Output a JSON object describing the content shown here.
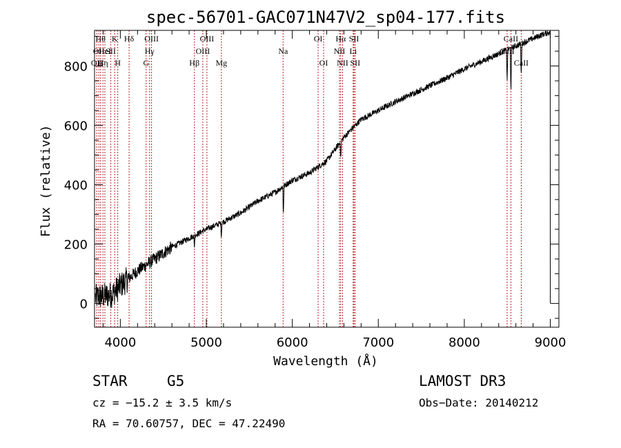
{
  "chart_data": {
    "type": "line",
    "title": "spec-56701-GAC071N47V2_sp04-177.fits",
    "xlabel": "Wavelength (Å)",
    "ylabel": "Flux (relative)",
    "xlim": [
      3700,
      9100
    ],
    "ylim": [
      -80,
      920
    ],
    "x_ticks": [
      4000,
      5000,
      6000,
      7000,
      8000,
      9000
    ],
    "y_ticks": [
      0,
      200,
      400,
      600,
      800
    ],
    "x_tick_labels": [
      "4000",
      "5000",
      "6000",
      "7000",
      "8000",
      "9000"
    ],
    "y_tick_labels": [
      "0",
      "200",
      "400",
      "600",
      "800"
    ],
    "spectrum_trend": {
      "wavelength": [
        3700,
        3900,
        4000,
        4200,
        4400,
        4600,
        4800,
        5000,
        5200,
        5400,
        5600,
        5800,
        6000,
        6200,
        6400,
        6600,
        6800,
        7000,
        7200,
        7500,
        7800,
        8000,
        8200,
        8500,
        8700,
        8900,
        9000
      ],
      "flux": [
        20,
        30,
        60,
        110,
        150,
        190,
        220,
        250,
        275,
        305,
        345,
        375,
        415,
        440,
        480,
        560,
        620,
        650,
        680,
        720,
        760,
        790,
        815,
        855,
        880,
        905,
        915
      ]
    },
    "absorption_features": [
      {
        "wavelength": 5896,
        "depth": 95
      },
      {
        "wavelength": 6563,
        "depth": 60
      },
      {
        "wavelength": 8498,
        "depth": 110
      },
      {
        "wavelength": 8542,
        "depth": 150
      },
      {
        "wavelength": 8662,
        "depth": 120
      },
      {
        "wavelength": 4861,
        "depth": 40
      },
      {
        "wavelength": 5175,
        "depth": 45
      }
    ],
    "line_markers": [
      {
        "wavelength": 3726,
        "label": "OII",
        "row": 2
      },
      {
        "wavelength": 3750,
        "label": "OII",
        "row": 1
      },
      {
        "wavelength": 3770,
        "label": "Hθ",
        "row": 0
      },
      {
        "wavelength": 3798,
        "label": "Hη",
        "row": 2
      },
      {
        "wavelength": 3820,
        "label": "HeI",
        "row": 1
      },
      {
        "wavelength": 3889,
        "label": "SII",
        "row": 1
      },
      {
        "wavelength": 3934,
        "label": "K",
        "row": 0
      },
      {
        "wavelength": 3970,
        "label": "H",
        "row": 2
      },
      {
        "wavelength": 4102,
        "label": "Hδ",
        "row": 0
      },
      {
        "wavelength": 4300,
        "label": "G",
        "row": 2
      },
      {
        "wavelength": 4340,
        "label": "Hγ",
        "row": 1
      },
      {
        "wavelength": 4363,
        "label": "OIII",
        "row": 0
      },
      {
        "wavelength": 4861,
        "label": "Hβ",
        "row": 2
      },
      {
        "wavelength": 4959,
        "label": "OIII",
        "row": 1
      },
      {
        "wavelength": 5007,
        "label": "OIII",
        "row": 0
      },
      {
        "wavelength": 5175,
        "label": "Mg",
        "row": 2
      },
      {
        "wavelength": 5893,
        "label": "Na",
        "row": 1
      },
      {
        "wavelength": 6300,
        "label": "OI",
        "row": 0
      },
      {
        "wavelength": 6364,
        "label": "OI",
        "row": 2
      },
      {
        "wavelength": 6548,
        "label": "NII",
        "row": 1
      },
      {
        "wavelength": 6563,
        "label": "Hα",
        "row": 0
      },
      {
        "wavelength": 6584,
        "label": "NII",
        "row": 2
      },
      {
        "wavelength": 6708,
        "label": "Li",
        "row": 1
      },
      {
        "wavelength": 6717,
        "label": "SII",
        "row": 0
      },
      {
        "wavelength": 6731,
        "label": "SII",
        "row": 2
      },
      {
        "wavelength": 8498,
        "label": "CaII",
        "row": 1
      },
      {
        "wavelength": 8542,
        "label": "CaII",
        "row": 0
      },
      {
        "wavelength": 8662,
        "label": "CaII",
        "row": 2
      }
    ],
    "colors": {
      "spectrum": "#000000",
      "marker_lines": "#b22222",
      "axes": "#000000"
    }
  },
  "info": {
    "class": "STAR",
    "subclass": "G5",
    "survey": "LAMOST DR3",
    "redshift": "cz = −15.2 ± 3.5 km/s",
    "obs_date": "Obs−Date: 20140212",
    "coords": "RA =  70.60757, DEC =  47.22490"
  }
}
